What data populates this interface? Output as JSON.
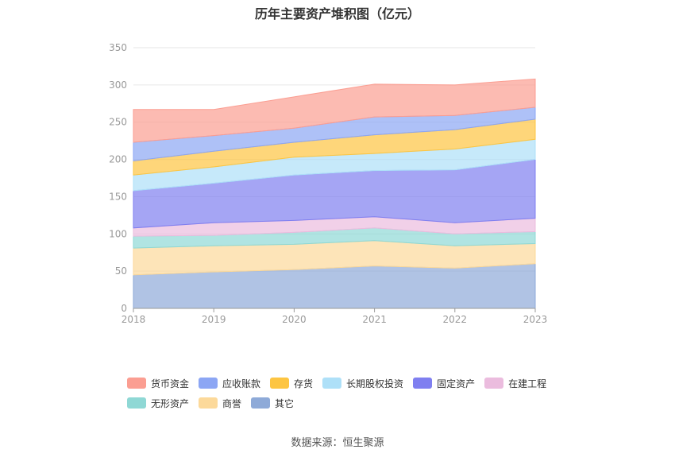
{
  "title": "历年主要资产堆积图（亿元）",
  "source": "数据来源：恒生聚源",
  "chart_data": {
    "type": "area",
    "stacked": true,
    "title": "历年主要资产堆积图（亿元）",
    "x": [
      "2018",
      "2019",
      "2020",
      "2021",
      "2022",
      "2023"
    ],
    "ylim": [
      0,
      350
    ],
    "yticks": [
      0,
      50,
      100,
      150,
      200,
      250,
      300,
      350
    ],
    "grid": true,
    "legend_position": "bottom",
    "series": [
      {
        "name": "其它",
        "color": "#8eaad8",
        "values": [
          45,
          49,
          52,
          57,
          54,
          60
        ]
      },
      {
        "name": "商誉",
        "color": "#fcd99a",
        "values": [
          36,
          35,
          34,
          34,
          30,
          27
        ]
      },
      {
        "name": "无形资产",
        "color": "#8fd8d5",
        "values": [
          16,
          14,
          16,
          17,
          16,
          16
        ]
      },
      {
        "name": "在建工程",
        "color": "#ebbcde",
        "values": [
          11,
          17,
          16,
          15,
          15,
          18
        ]
      },
      {
        "name": "固定资产",
        "color": "#7f7ff0",
        "values": [
          50,
          53,
          61,
          62,
          71,
          79
        ]
      },
      {
        "name": "长期股权投资",
        "color": "#aee0f8",
        "values": [
          21,
          22,
          24,
          23,
          28,
          27
        ]
      },
      {
        "name": "存货",
        "color": "#fdc542",
        "values": [
          19,
          21,
          20,
          25,
          26,
          27
        ]
      },
      {
        "name": "应收账款",
        "color": "#8ca6f4",
        "values": [
          25,
          21,
          19,
          24,
          19,
          16
        ]
      },
      {
        "name": "货币资金",
        "color": "#fb9e92",
        "values": [
          44,
          35,
          42,
          44,
          41,
          38
        ]
      }
    ]
  },
  "legend_rows": [
    [
      "货币资金",
      "应收账款",
      "存货",
      "长期股权投资",
      "固定资产",
      "在建工程"
    ],
    [
      "无形资产",
      "商誉",
      "其它"
    ]
  ]
}
